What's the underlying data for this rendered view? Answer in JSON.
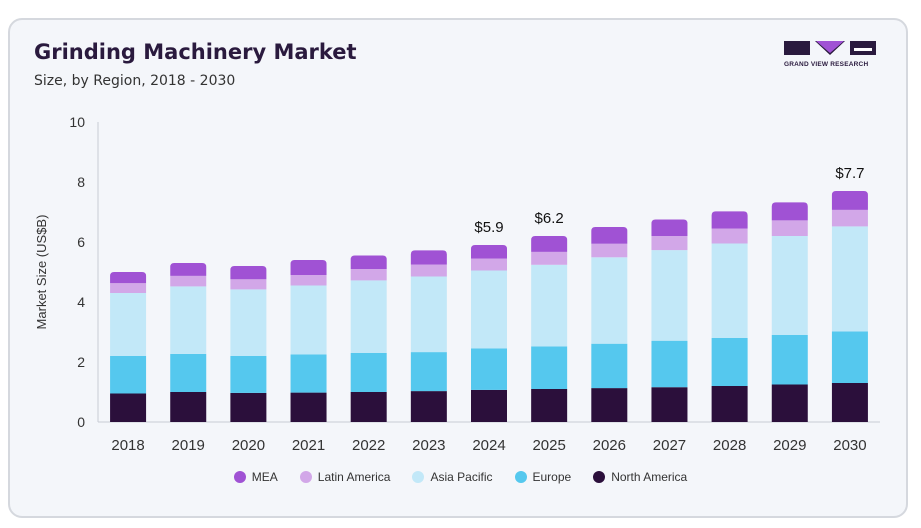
{
  "header": {
    "title": "Grinding Machinery Market",
    "subtitle": "Size, by Region, 2018 - 2030"
  },
  "logo": {
    "text": "GRAND VIEW RESEARCH",
    "color": "#2a1a3e"
  },
  "chart_data": {
    "type": "bar",
    "stacked": true,
    "title": "Grinding Machinery Market",
    "subtitle": "Size, by Region, 2018 - 2030",
    "xlabel": "",
    "ylabel": "Market Size (US$B)",
    "ylim": [
      0,
      10
    ],
    "yticks": [
      0,
      2,
      4,
      6,
      8,
      10
    ],
    "grid": false,
    "legend_position": "bottom",
    "categories": [
      "2018",
      "2019",
      "2020",
      "2021",
      "2022",
      "2023",
      "2024",
      "2025",
      "2026",
      "2027",
      "2028",
      "2029",
      "2030"
    ],
    "series": [
      {
        "name": "North America",
        "color": "#2b0f3b",
        "values": [
          0.95,
          1.0,
          0.97,
          0.98,
          1.0,
          1.03,
          1.07,
          1.1,
          1.13,
          1.16,
          1.2,
          1.25,
          1.3
        ]
      },
      {
        "name": "Europe",
        "color": "#55c8ee",
        "values": [
          1.25,
          1.27,
          1.23,
          1.27,
          1.3,
          1.3,
          1.38,
          1.42,
          1.48,
          1.55,
          1.6,
          1.65,
          1.72
        ]
      },
      {
        "name": "Asia Pacific",
        "color": "#c2e8f8",
        "values": [
          2.1,
          2.25,
          2.22,
          2.3,
          2.42,
          2.52,
          2.6,
          2.72,
          2.88,
          3.02,
          3.15,
          3.3,
          3.5
        ]
      },
      {
        "name": "Latin America",
        "color": "#d2a7e8",
        "values": [
          0.33,
          0.35,
          0.34,
          0.35,
          0.38,
          0.4,
          0.4,
          0.43,
          0.45,
          0.47,
          0.5,
          0.52,
          0.55
        ]
      },
      {
        "name": "MEA",
        "color": "#a052d4",
        "values": [
          0.37,
          0.43,
          0.44,
          0.5,
          0.45,
          0.47,
          0.45,
          0.53,
          0.56,
          0.55,
          0.57,
          0.6,
          0.63
        ]
      }
    ],
    "annotations": [
      {
        "category": "2024",
        "label": "$5.9"
      },
      {
        "category": "2025",
        "label": "$6.2"
      },
      {
        "category": "2030",
        "label": "$7.7"
      }
    ]
  },
  "legend_order": [
    "MEA",
    "Latin America",
    "Asia Pacific",
    "Europe",
    "North America"
  ]
}
